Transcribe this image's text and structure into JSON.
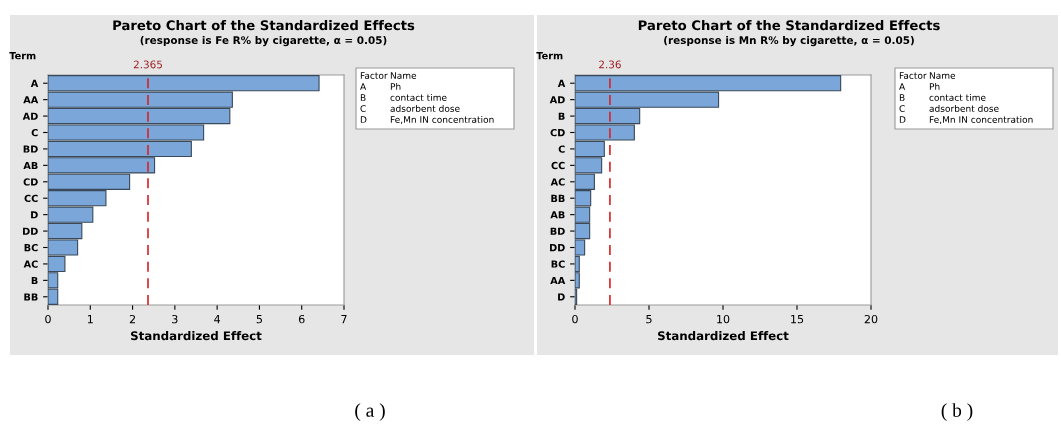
{
  "chart_data": [
    {
      "type": "bar",
      "orientation": "horizontal",
      "title": "Pareto Chart of the Standardized Effects",
      "subtitle": "(response is Fe R% by cigarette, α = 0.05)",
      "xlabel": "Standardized Effect",
      "ylabel": "Term",
      "categories": [
        "A",
        "AA",
        "AD",
        "C",
        "BD",
        "AB",
        "CD",
        "CC",
        "D",
        "DD",
        "BC",
        "AC",
        "B",
        "BB"
      ],
      "values": [
        6.41,
        4.36,
        4.3,
        3.68,
        3.39,
        2.52,
        1.93,
        1.37,
        1.06,
        0.8,
        0.7,
        0.4,
        0.23,
        0.23
      ],
      "color": "#7aa6da",
      "xlim": [
        0,
        7
      ],
      "xticks": [
        0,
        1,
        2,
        3,
        4,
        5,
        6,
        7
      ],
      "grid": false,
      "legend": false,
      "ref_lines": [
        {
          "axis": "x",
          "value": 2.365,
          "label": "2.365",
          "color": "#d62728",
          "line_style": "dashed"
        }
      ],
      "annotations": [
        "( a )",
        "Factor",
        "Name",
        "A",
        "Ph",
        "B",
        "contact time",
        "C",
        "adsorbent dose",
        "D",
        "Fe,Mn IN concentration"
      ]
    },
    {
      "type": "bar",
      "orientation": "horizontal",
      "title": "Pareto Chart of the Standardized Effects",
      "subtitle": "(response is Mn R% by cigarette, α = 0.05)",
      "xlabel": "Standardized Effect",
      "ylabel": "Term",
      "categories": [
        "A",
        "AD",
        "B",
        "CD",
        "C",
        "CC",
        "AC",
        "BB",
        "AB",
        "BD",
        "DD",
        "BC",
        "AA",
        "D"
      ],
      "values": [
        17.95,
        9.7,
        4.37,
        4.01,
        1.98,
        1.8,
        1.31,
        1.06,
        0.99,
        0.99,
        0.65,
        0.29,
        0.29,
        0.11
      ],
      "color": "#7aa6da",
      "xlim": [
        0,
        20
      ],
      "xticks": [
        0,
        5,
        10,
        15,
        20
      ],
      "grid": false,
      "legend": false,
      "ref_lines": [
        {
          "axis": "x",
          "value": 2.36,
          "label": "2.36",
          "color": "#d62728",
          "line_style": "dashed"
        }
      ],
      "annotations": [
        "( b )",
        "Factor",
        "Name",
        "A",
        "Ph",
        "B",
        "contact time",
        "C",
        "adsorbent dose",
        "D",
        "Fe,Mn IN concentration"
      ]
    }
  ]
}
